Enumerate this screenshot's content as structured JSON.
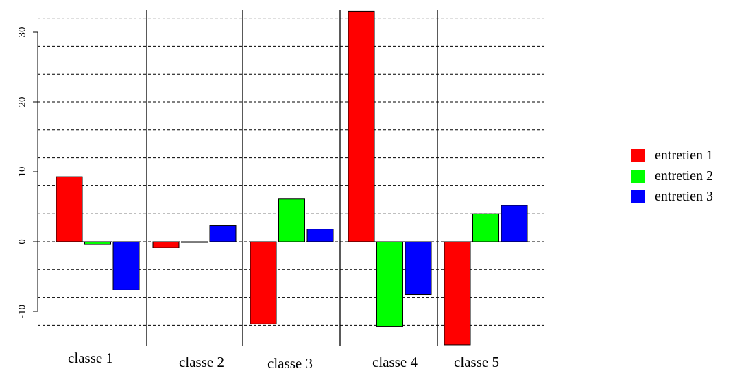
{
  "chart_data": {
    "type": "bar",
    "title": "",
    "xlabel": "",
    "ylabel": "",
    "categories": [
      "classe 1",
      "classe 2",
      "classe 3",
      "classe 4",
      "classe 5"
    ],
    "series": [
      {
        "name": "entretien 1",
        "color": "#ff0000",
        "values": [
          9.3,
          -0.9,
          -11.8,
          33.0,
          -14.8
        ]
      },
      {
        "name": "entretien 2",
        "color": "#00ff00",
        "values": [
          -0.4,
          -0.1,
          6.1,
          -12.2,
          4.0
        ]
      },
      {
        "name": "entretien 3",
        "color": "#0000ff",
        "values": [
          -6.9,
          2.3,
          1.8,
          -7.6,
          5.2
        ]
      }
    ],
    "ylim": [
      -14.8,
      33.0
    ],
    "yticks": [
      -10,
      0,
      10,
      20,
      30
    ],
    "gridlines": [
      -12,
      -8,
      -4,
      0,
      4,
      8,
      12,
      16,
      20,
      24,
      28,
      32
    ],
    "grid": true,
    "legend_position": "right"
  }
}
